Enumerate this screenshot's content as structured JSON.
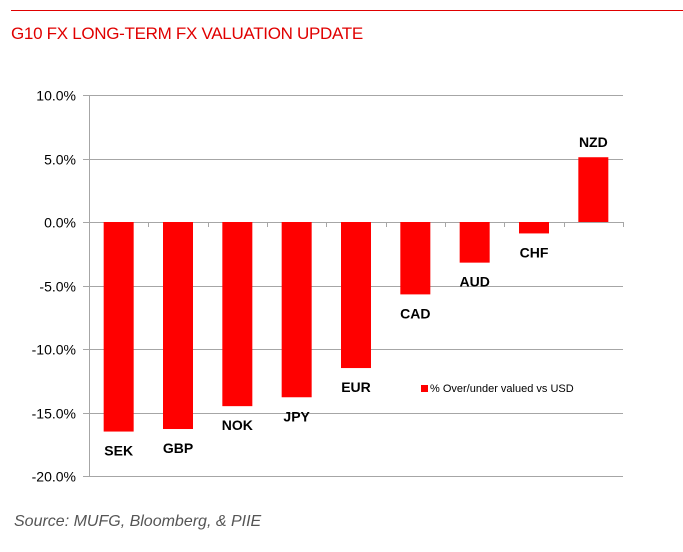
{
  "header": {
    "title": "G10 FX LONG-TERM FX VALUATION UPDATE",
    "accent_color": "#e00000"
  },
  "chart_data": {
    "type": "bar",
    "title": "",
    "xlabel": "",
    "ylabel": "",
    "categories": [
      "SEK",
      "GBP",
      "NOK",
      "JPY",
      "EUR",
      "CAD",
      "AUD",
      "CHF",
      "NZD"
    ],
    "series": [
      {
        "name": "% Over/under valued vs USD",
        "color": "#ff0000",
        "values": [
          -16.5,
          -16.3,
          -14.5,
          -13.8,
          -11.5,
          -5.7,
          -3.2,
          -0.9,
          5.1
        ]
      }
    ],
    "ylim": [
      -20,
      10
    ],
    "yticks": [
      10,
      5,
      0,
      -5,
      -10,
      -15,
      -20
    ],
    "ytick_labels": [
      "10.0%",
      "5.0%",
      "0.0%",
      "-5.0%",
      "-10.0%",
      "-15.0%",
      "-20.0%"
    ],
    "grid": true,
    "legend": {
      "position": "lower-right-inside",
      "entries": [
        "% Over/under valued vs USD"
      ]
    },
    "category_labels_position": "at bar end"
  },
  "footer": {
    "source": "Source: MUFG, Bloomberg, &  PIIE"
  }
}
